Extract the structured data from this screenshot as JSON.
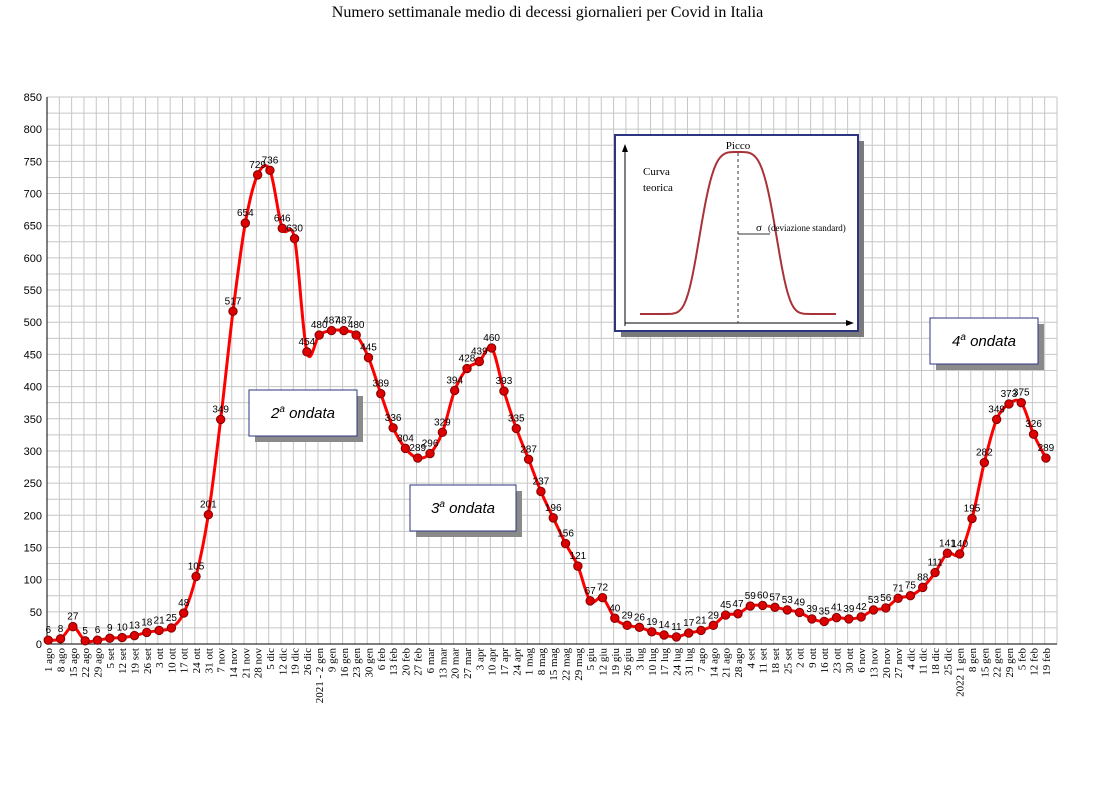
{
  "chart_data": {
    "type": "line",
    "title": "Numero settimanale medio di decessi giornalieri per Covid in Italia",
    "xlabel": "",
    "ylabel": "",
    "ylim": [
      0,
      850
    ],
    "ytick_step": 50,
    "grid": true,
    "line_color": "#ff0000",
    "marker_color": "#dd0000",
    "categories": [
      "1 ago",
      "8 ago",
      "15 ago",
      "22 ago",
      "29 ago",
      "5 set",
      "12 set",
      "19 set",
      "26 set",
      "3 ott",
      "10 ott",
      "17 ott",
      "24 ott",
      "31 ott",
      "7 nov",
      "14 nov",
      "21 nov",
      "28 nov",
      "5 dic",
      "12 dic",
      "19 dic",
      "26 dic",
      "2021 - 2 gen",
      "9 gen",
      "16 gen",
      "23 gen",
      "30 gen",
      "6 feb",
      "13 feb",
      "20 feb",
      "27 feb",
      "6 mar",
      "13 mar",
      "20 mar",
      "27 mar",
      "3 apr",
      "10 apr",
      "17 apr",
      "24 apr",
      "1 mag",
      "8 mag",
      "15 mag",
      "22 mag",
      "29 mag",
      "5 giu",
      "12 giu",
      "19 giu",
      "26 giu",
      "3 lug",
      "10 lug",
      "17 lug",
      "24 lug",
      "31 lug",
      "7 ago",
      "14 ago",
      "21 ago",
      "28 ago",
      "4 set",
      "11 set",
      "18 set",
      "25 set",
      "2 ott",
      "9 ott",
      "16 ott",
      "23 ott",
      "30 ott",
      "6 nov",
      "13 nov",
      "20 nov",
      "27 nov",
      "4 dic",
      "11 dic",
      "18 dic",
      "25 dic",
      "2022 1 gen",
      "8 gen",
      "15 gen",
      "22 gen",
      "29 gen",
      "5 feb",
      "12 feb",
      "19 feb"
    ],
    "series": [
      {
        "values": [
          6,
          8,
          27,
          5,
          6,
          9,
          10,
          13,
          18,
          21,
          25,
          48,
          105,
          201,
          349,
          517,
          654,
          729,
          736,
          646,
          630,
          454,
          480,
          487,
          487,
          480,
          445,
          389,
          336,
          304,
          289,
          296,
          329,
          394,
          428,
          439,
          460,
          393,
          335,
          287,
          237,
          196,
          156,
          121,
          67,
          72,
          40,
          29,
          26,
          19,
          14,
          11,
          17,
          21,
          29,
          45,
          47,
          59,
          60,
          57,
          53,
          49,
          39,
          35,
          41,
          39,
          42,
          53,
          56,
          71,
          75,
          88,
          111,
          141,
          140,
          195,
          282,
          349,
          373,
          375,
          326,
          289
        ]
      }
    ],
    "data_labels": [
      "6",
      "8",
      "27",
      "5",
      "6",
      "9",
      "10",
      "13",
      "18",
      "21",
      "25",
      "48",
      "105",
      "201",
      "349",
      "517",
      "654",
      "729",
      "736",
      "646",
      "630",
      "454",
      "480",
      "487",
      "487",
      "480",
      "445",
      "389",
      "336",
      "304",
      "289",
      "296",
      "329",
      "394",
      "428",
      "439",
      "460",
      "393",
      "335",
      "287",
      "237",
      "196",
      "156",
      "121",
      "67",
      "72",
      "40",
      "29",
      "26",
      "19",
      "14",
      "11",
      "17",
      "21",
      "29",
      "45",
      "47",
      "59",
      "60",
      "57",
      "53",
      "49",
      "39",
      "35",
      "41",
      "39",
      "42",
      "53",
      "56",
      "71",
      "75",
      "88",
      "111",
      "141",
      "140",
      "195",
      "282",
      "349",
      "373",
      "375",
      "326",
      "289"
    ],
    "annotations": [
      {
        "name": "ondata-2",
        "sup": "a",
        "pre": "2",
        "post": " ondata"
      },
      {
        "name": "ondata-3",
        "sup": "a",
        "pre": "3",
        "post": " ondata"
      },
      {
        "name": "ondata-4",
        "sup": "a",
        "pre": "4",
        "post": " ondata"
      }
    ],
    "inset": {
      "peak_label": "Picco",
      "curve_label_1": "Curva",
      "curve_label_2": "teorica",
      "sigma_label": "σ",
      "sigma_text": "(deviazione standard)",
      "curve_color": "#a83238"
    }
  }
}
